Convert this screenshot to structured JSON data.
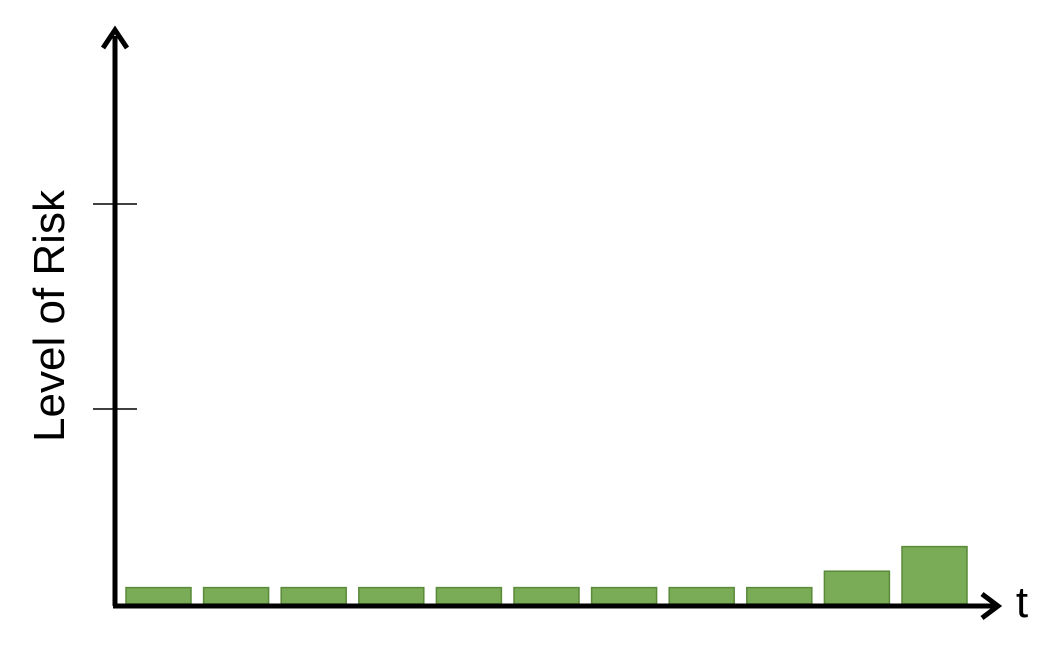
{
  "chart_data": {
    "type": "bar",
    "xlabel": "t",
    "ylabel": "Level of Risk",
    "values": [
      0.4,
      0.4,
      0.4,
      0.4,
      0.4,
      0.4,
      0.4,
      0.4,
      0.4,
      0.8,
      1.4
    ],
    "ylim": [
      0,
      10
    ],
    "yticks": [
      5,
      10
    ],
    "grid": false,
    "bar_color": "#7aab56",
    "bar_edge_color": "#5a8a3a",
    "axis_color": "#000000"
  }
}
